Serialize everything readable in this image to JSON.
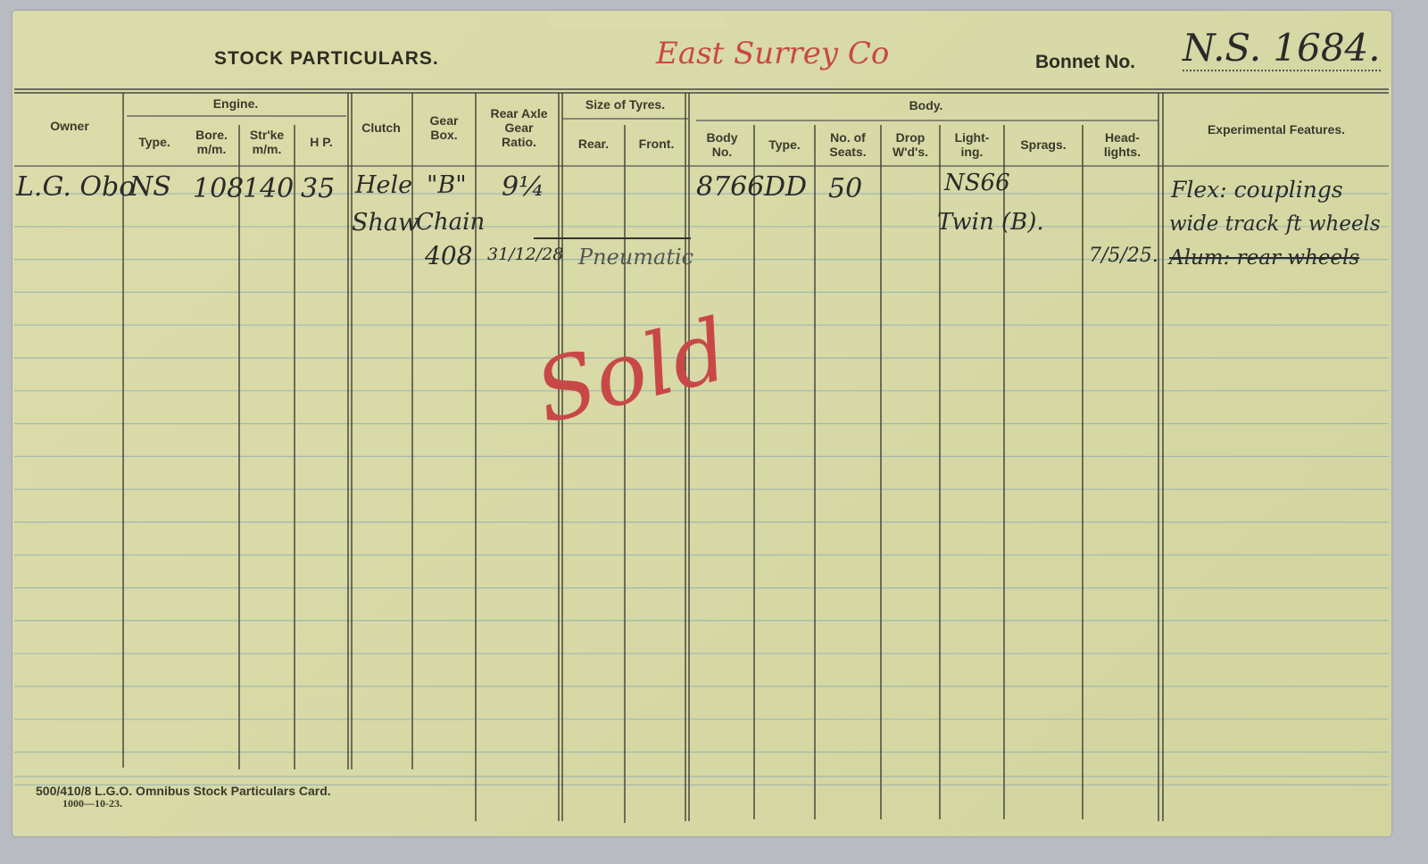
{
  "card": {
    "title": "STOCK PARTICULARS.",
    "operator_note": "East Surrey Co",
    "bonnet_label": "Bonnet No.",
    "bonnet_value": "N.S. 1684.",
    "headers": {
      "owner": "Owner",
      "engine": "Engine.",
      "engine_type": "Type.",
      "bore": "Bore.\nm/m.",
      "stroke": "Str'ke\nm/m.",
      "hp": "H P.",
      "clutch": "Clutch",
      "gear_box": "Gear\nBox.",
      "rear_axle": "Rear Axle\nGear\nRatio.",
      "tyres": "Size of Tyres.",
      "rear": "Rear.",
      "front": "Front.",
      "body": "Body.",
      "body_no": "Body\nNo.",
      "body_type": "Type.",
      "seats": "No. of\nSeats.",
      "drop": "Drop\nW'd's.",
      "lighting": "Light-\ning.",
      "sprags": "Sprags.",
      "headlights": "Head-\nlights.",
      "experimental": "Experimental Features."
    },
    "entries": {
      "owner": "L.G. Obo",
      "engine_type": "NS",
      "bore": "108",
      "stroke": "140",
      "hp": "35",
      "clutch_1": "Hele",
      "clutch_2": "Shaw",
      "gearbox_1": "\"B\"",
      "gearbox_2": "Chain",
      "gearbox_3": "408",
      "ratio": "9¼",
      "ratio_date": "31/12/28",
      "tyres": "Pneumatic",
      "body_no": "8766",
      "body_type": "DD",
      "seats": "50",
      "lighting_1": "NS66",
      "lighting_2": "Twin (B).",
      "headlights_date": "7/5/25.",
      "exp_1": "Flex: couplings",
      "exp_2": "wide track ft wheels",
      "exp_3": "Alum: rear wheels",
      "sold": "Sold"
    },
    "footer_1": "500/410/8 L.G.O.  Omnibus Stock Particulars Card.",
    "footer_2": "1000—10-23."
  }
}
